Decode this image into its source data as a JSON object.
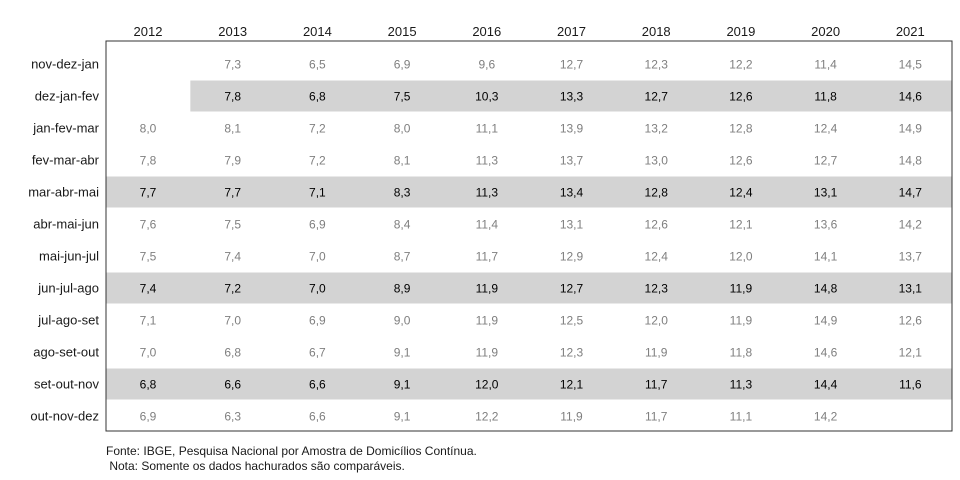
{
  "chart_data": {
    "type": "table",
    "title": "",
    "years": [
      "2012",
      "2013",
      "2014",
      "2015",
      "2016",
      "2017",
      "2018",
      "2019",
      "2020",
      "2021"
    ],
    "rows": [
      {
        "label": "nov-dez-jan",
        "highlight": false,
        "values": [
          null,
          "7,3",
          "6,5",
          "6,9",
          "9,6",
          "12,7",
          "12,3",
          "12,2",
          "11,4",
          "14,5"
        ]
      },
      {
        "label": "dez-jan-fev",
        "highlight": true,
        "values": [
          null,
          "7,8",
          "6,8",
          "7,5",
          "10,3",
          "13,3",
          "12,7",
          "12,6",
          "11,8",
          "14,6"
        ]
      },
      {
        "label": "jan-fev-mar",
        "highlight": false,
        "values": [
          "8,0",
          "8,1",
          "7,2",
          "8,0",
          "11,1",
          "13,9",
          "13,2",
          "12,8",
          "12,4",
          "14,9"
        ]
      },
      {
        "label": "fev-mar-abr",
        "highlight": false,
        "values": [
          "7,8",
          "7,9",
          "7,2",
          "8,1",
          "11,3",
          "13,7",
          "13,0",
          "12,6",
          "12,7",
          "14,8"
        ]
      },
      {
        "label": "mar-abr-mai",
        "highlight": true,
        "values": [
          "7,7",
          "7,7",
          "7,1",
          "8,3",
          "11,3",
          "13,4",
          "12,8",
          "12,4",
          "13,1",
          "14,7"
        ]
      },
      {
        "label": "abr-mai-jun",
        "highlight": false,
        "values": [
          "7,6",
          "7,5",
          "6,9",
          "8,4",
          "11,4",
          "13,1",
          "12,6",
          "12,1",
          "13,6",
          "14,2"
        ]
      },
      {
        "label": "mai-jun-jul",
        "highlight": false,
        "values": [
          "7,5",
          "7,4",
          "7,0",
          "8,7",
          "11,7",
          "12,9",
          "12,4",
          "12,0",
          "14,1",
          "13,7"
        ]
      },
      {
        "label": "jun-jul-ago",
        "highlight": true,
        "values": [
          "7,4",
          "7,2",
          "7,0",
          "8,9",
          "11,9",
          "12,7",
          "12,3",
          "11,9",
          "14,8",
          "13,1"
        ]
      },
      {
        "label": "jul-ago-set",
        "highlight": false,
        "values": [
          "7,1",
          "7,0",
          "6,9",
          "9,0",
          "11,9",
          "12,5",
          "12,0",
          "11,9",
          "14,9",
          "12,6"
        ]
      },
      {
        "label": "ago-set-out",
        "highlight": false,
        "values": [
          "7,0",
          "6,8",
          "6,7",
          "9,1",
          "11,9",
          "12,3",
          "11,9",
          "11,8",
          "14,6",
          "12,1"
        ]
      },
      {
        "label": "set-out-nov",
        "highlight": true,
        "values": [
          "6,8",
          "6,6",
          "6,6",
          "9,1",
          "12,0",
          "12,1",
          "11,7",
          "11,3",
          "14,4",
          "11,6"
        ]
      },
      {
        "label": "out-nov-dez",
        "highlight": false,
        "values": [
          "6,9",
          "6,3",
          "6,6",
          "9,1",
          "12,2",
          "11,9",
          "11,7",
          "11,1",
          "14,2",
          null
        ]
      }
    ],
    "colors": {
      "highlight_band": "#d3d3d3",
      "highlight_text": "#000000",
      "normal_text": "#7f7f7f",
      "border": "#333333"
    }
  },
  "footnotes": {
    "source": "Fonte: IBGE, Pesquisa Nacional por Amostra de Domicílios Contínua.",
    "note": " Nota: Somente os dados hachurados são comparáveis."
  }
}
